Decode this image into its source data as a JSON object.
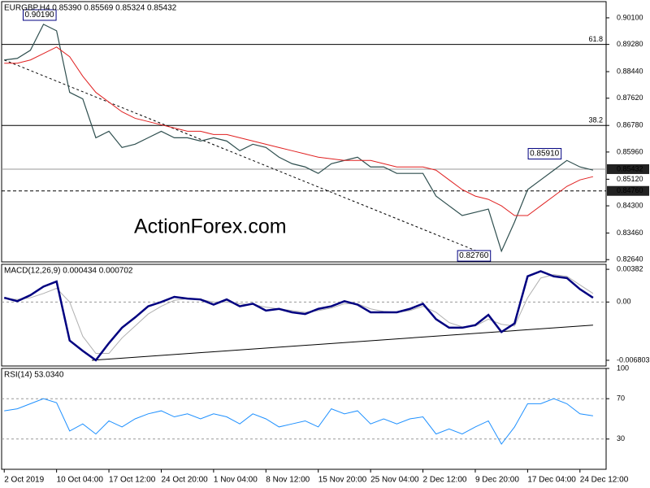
{
  "chart_data": [
    {
      "type": "line",
      "title": "EURGBP,H4 0.85390 0.85569 0.85324 0.85432",
      "watermark": "ActionForex.com",
      "x": [
        0,
        1,
        2,
        3,
        4,
        5,
        6,
        7,
        8,
        9,
        10,
        11,
        12,
        13,
        14,
        15,
        16,
        17,
        18,
        19,
        20,
        21,
        22,
        23,
        24,
        25,
        26,
        27,
        28,
        29,
        30,
        31,
        32,
        33,
        34,
        35,
        36,
        37,
        38,
        39,
        40,
        41,
        42,
        43,
        44,
        45
      ],
      "xlim": [
        -0.2,
        46
      ],
      "ylim": [
        0.8257,
        0.906
      ],
      "yticks": [
        {
          "value": 0.901,
          "label": "0.90100"
        },
        {
          "value": 0.8928,
          "label": "0.89280"
        },
        {
          "value": 0.8844,
          "label": "0.88440"
        },
        {
          "value": 0.8762,
          "label": "0.87620"
        },
        {
          "value": 0.8678,
          "label": "0.86780"
        },
        {
          "value": 0.8596,
          "label": "0.85960"
        },
        {
          "value": 0.8512,
          "label": "0.85120"
        },
        {
          "value": 0.843,
          "label": "0.84300"
        },
        {
          "value": 0.8346,
          "label": "0.83460"
        },
        {
          "value": 0.8264,
          "label": "0.82640"
        }
      ],
      "series": [
        {
          "color": "#2f4f4f",
          "width": 1.2,
          "values": [
            0.888,
            0.8885,
            0.891,
            0.899,
            0.897,
            0.878,
            0.876,
            0.864,
            0.866,
            0.861,
            0.862,
            0.864,
            0.866,
            0.864,
            0.864,
            0.863,
            0.864,
            0.863,
            0.86,
            0.862,
            0.861,
            0.858,
            0.856,
            0.855,
            0.853,
            0.856,
            0.857,
            0.858,
            0.855,
            0.855,
            0.853,
            0.853,
            0.853,
            0.846,
            0.843,
            0.84,
            0.841,
            0.842,
            0.829,
            0.838,
            0.848,
            0.851,
            0.854,
            0.857,
            0.855,
            0.854
          ]
        },
        {
          "color": "#e02020",
          "width": 1,
          "values": [
            0.887,
            0.887,
            0.888,
            0.89,
            0.892,
            0.889,
            0.883,
            0.878,
            0.875,
            0.872,
            0.87,
            0.869,
            0.868,
            0.867,
            0.866,
            0.866,
            0.865,
            0.865,
            0.864,
            0.863,
            0.862,
            0.861,
            0.86,
            0.859,
            0.858,
            0.8575,
            0.857,
            0.857,
            0.857,
            0.856,
            0.855,
            0.855,
            0.855,
            0.854,
            0.851,
            0.848,
            0.846,
            0.845,
            0.843,
            0.84,
            0.84,
            0.843,
            0.846,
            0.849,
            0.851,
            0.852
          ]
        }
      ],
      "trendline": {
        "style": "dashed",
        "x": [
          0,
          37
        ],
        "values": [
          0.888,
          0.8276
        ]
      },
      "levels": [
        {
          "label": "61.8",
          "value": 0.8928
        },
        {
          "label": "38.2",
          "value": 0.8678
        }
      ],
      "price_labels": [
        {
          "label": "0.85432",
          "value": 0.85432,
          "style": "solid"
        },
        {
          "label": "0.84760",
          "value": 0.8476,
          "style": "dashed"
        }
      ],
      "annotations": [
        {
          "label": "0.90190",
          "x": 4,
          "value": 0.9019
        },
        {
          "label": "0.85910",
          "x": 42.6,
          "value": 0.8591
        },
        {
          "label": "0.82760",
          "x": 37.2,
          "value": 0.8276
        }
      ]
    },
    {
      "type": "line",
      "title": "MACD(12,26,9) 0.000434 0.000702",
      "x": [
        0,
        1,
        2,
        3,
        4,
        5,
        6,
        7,
        8,
        9,
        10,
        11,
        12,
        13,
        14,
        15,
        16,
        17,
        18,
        19,
        20,
        21,
        22,
        23,
        24,
        25,
        26,
        27,
        28,
        29,
        30,
        31,
        32,
        33,
        34,
        35,
        36,
        37,
        38,
        39,
        40,
        41,
        42,
        43,
        44,
        45
      ],
      "xlim": [
        -0.2,
        46
      ],
      "ylim": [
        -0.00747,
        0.0044
      ],
      "yticks": [
        {
          "value": 0.00382,
          "label": "0.00382"
        },
        {
          "value": 0,
          "label": "0.00"
        },
        {
          "value": -0.006803,
          "label": "-0.006803"
        }
      ],
      "levels": [
        0
      ],
      "series": [
        {
          "color": "#b0b0b0",
          "width": 1,
          "values": [
            0.0004,
            0.0003,
            0.0005,
            0.001,
            0.0016,
            0,
            -0.004,
            -0.006,
            -0.006,
            -0.0042,
            -0.0028,
            -0.0014,
            -0.0005,
            0.0002,
            0.0004,
            0.0003,
            0,
            0,
            -0.0002,
            -0.0003,
            -0.0006,
            -0.0008,
            -0.001,
            -0.0012,
            -0.001,
            -0.0007,
            -0.0002,
            -0.0002,
            -0.0008,
            -0.0011,
            -0.0012,
            -0.001,
            -0.0005,
            -0.0012,
            -0.0024,
            -0.0029,
            -0.0028,
            -0.002,
            -0.0026,
            -0.0028,
            0.0005,
            0.0028,
            0.0032,
            0.003,
            0.002,
            0.001
          ]
        },
        {
          "color": "#000080",
          "width": 2.5,
          "values": [
            0.0005,
            0.0001,
            0.0008,
            0.0018,
            0.0024,
            -0.0045,
            -0.0057,
            -0.0068,
            -0.0048,
            -0.003,
            -0.0018,
            -0.0005,
            0,
            0.0006,
            0.0004,
            0.0003,
            -0.0003,
            0.0003,
            -0.0005,
            -0.0002,
            -0.001,
            -0.0008,
            -0.0012,
            -0.0014,
            -0.0008,
            -0.0005,
            0.0001,
            -0.0003,
            -0.0012,
            -0.0012,
            -0.0012,
            -0.0008,
            -0.0002,
            -0.002,
            -0.003,
            -0.003,
            -0.0027,
            -0.0015,
            -0.0035,
            -0.0025,
            0.003,
            0.0036,
            0.003,
            0.0028,
            0.0015,
            0.0005
          ]
        }
      ],
      "trendline": {
        "style": "solid",
        "x": [
          6.7,
          45
        ],
        "values": [
          -0.0068,
          -0.0027
        ]
      }
    },
    {
      "type": "line",
      "title": "RSI(14) 53.0340",
      "x": [
        0,
        1,
        2,
        3,
        4,
        5,
        6,
        7,
        8,
        9,
        10,
        11,
        12,
        13,
        14,
        15,
        16,
        17,
        18,
        19,
        20,
        21,
        22,
        23,
        24,
        25,
        26,
        27,
        28,
        29,
        30,
        31,
        32,
        33,
        34,
        35,
        36,
        37,
        38,
        39,
        40,
        41,
        42,
        43,
        44,
        45
      ],
      "xlim": [
        -0.2,
        46
      ],
      "ylim": [
        0,
        100
      ],
      "yticks": [
        100,
        70,
        30
      ],
      "levels": [
        70,
        30
      ],
      "series": [
        {
          "color": "#1e90ff",
          "width": 1,
          "values": [
            58,
            60,
            65,
            70,
            66,
            38,
            45,
            35,
            48,
            42,
            50,
            55,
            58,
            52,
            55,
            50,
            55,
            52,
            45,
            55,
            50,
            42,
            45,
            48,
            42,
            60,
            55,
            58,
            45,
            50,
            45,
            50,
            52,
            35,
            40,
            35,
            42,
            48,
            25,
            42,
            65,
            65,
            70,
            65,
            55,
            53
          ]
        }
      ],
      "xticks": [
        {
          "value": 0,
          "label": "2 Oct 2019"
        },
        {
          "value": 4,
          "label": "10 Oct 04:00"
        },
        {
          "value": 8,
          "label": "17 Oct 12:00"
        },
        {
          "value": 12,
          "label": "24 Oct 20:00"
        },
        {
          "value": 16,
          "label": "1 Nov 04:00"
        },
        {
          "value": 20,
          "label": "8 Nov 12:00"
        },
        {
          "value": 24,
          "label": "15 Nov 20:00"
        },
        {
          "value": 28,
          "label": "25 Nov 04:00"
        },
        {
          "value": 32,
          "label": "2 Dec 12:00"
        },
        {
          "value": 36,
          "label": "9 Dec 20:00"
        },
        {
          "value": 40,
          "label": "17 Dec 04:00"
        },
        {
          "value": 44,
          "label": "24 Dec 12:00"
        }
      ]
    }
  ]
}
